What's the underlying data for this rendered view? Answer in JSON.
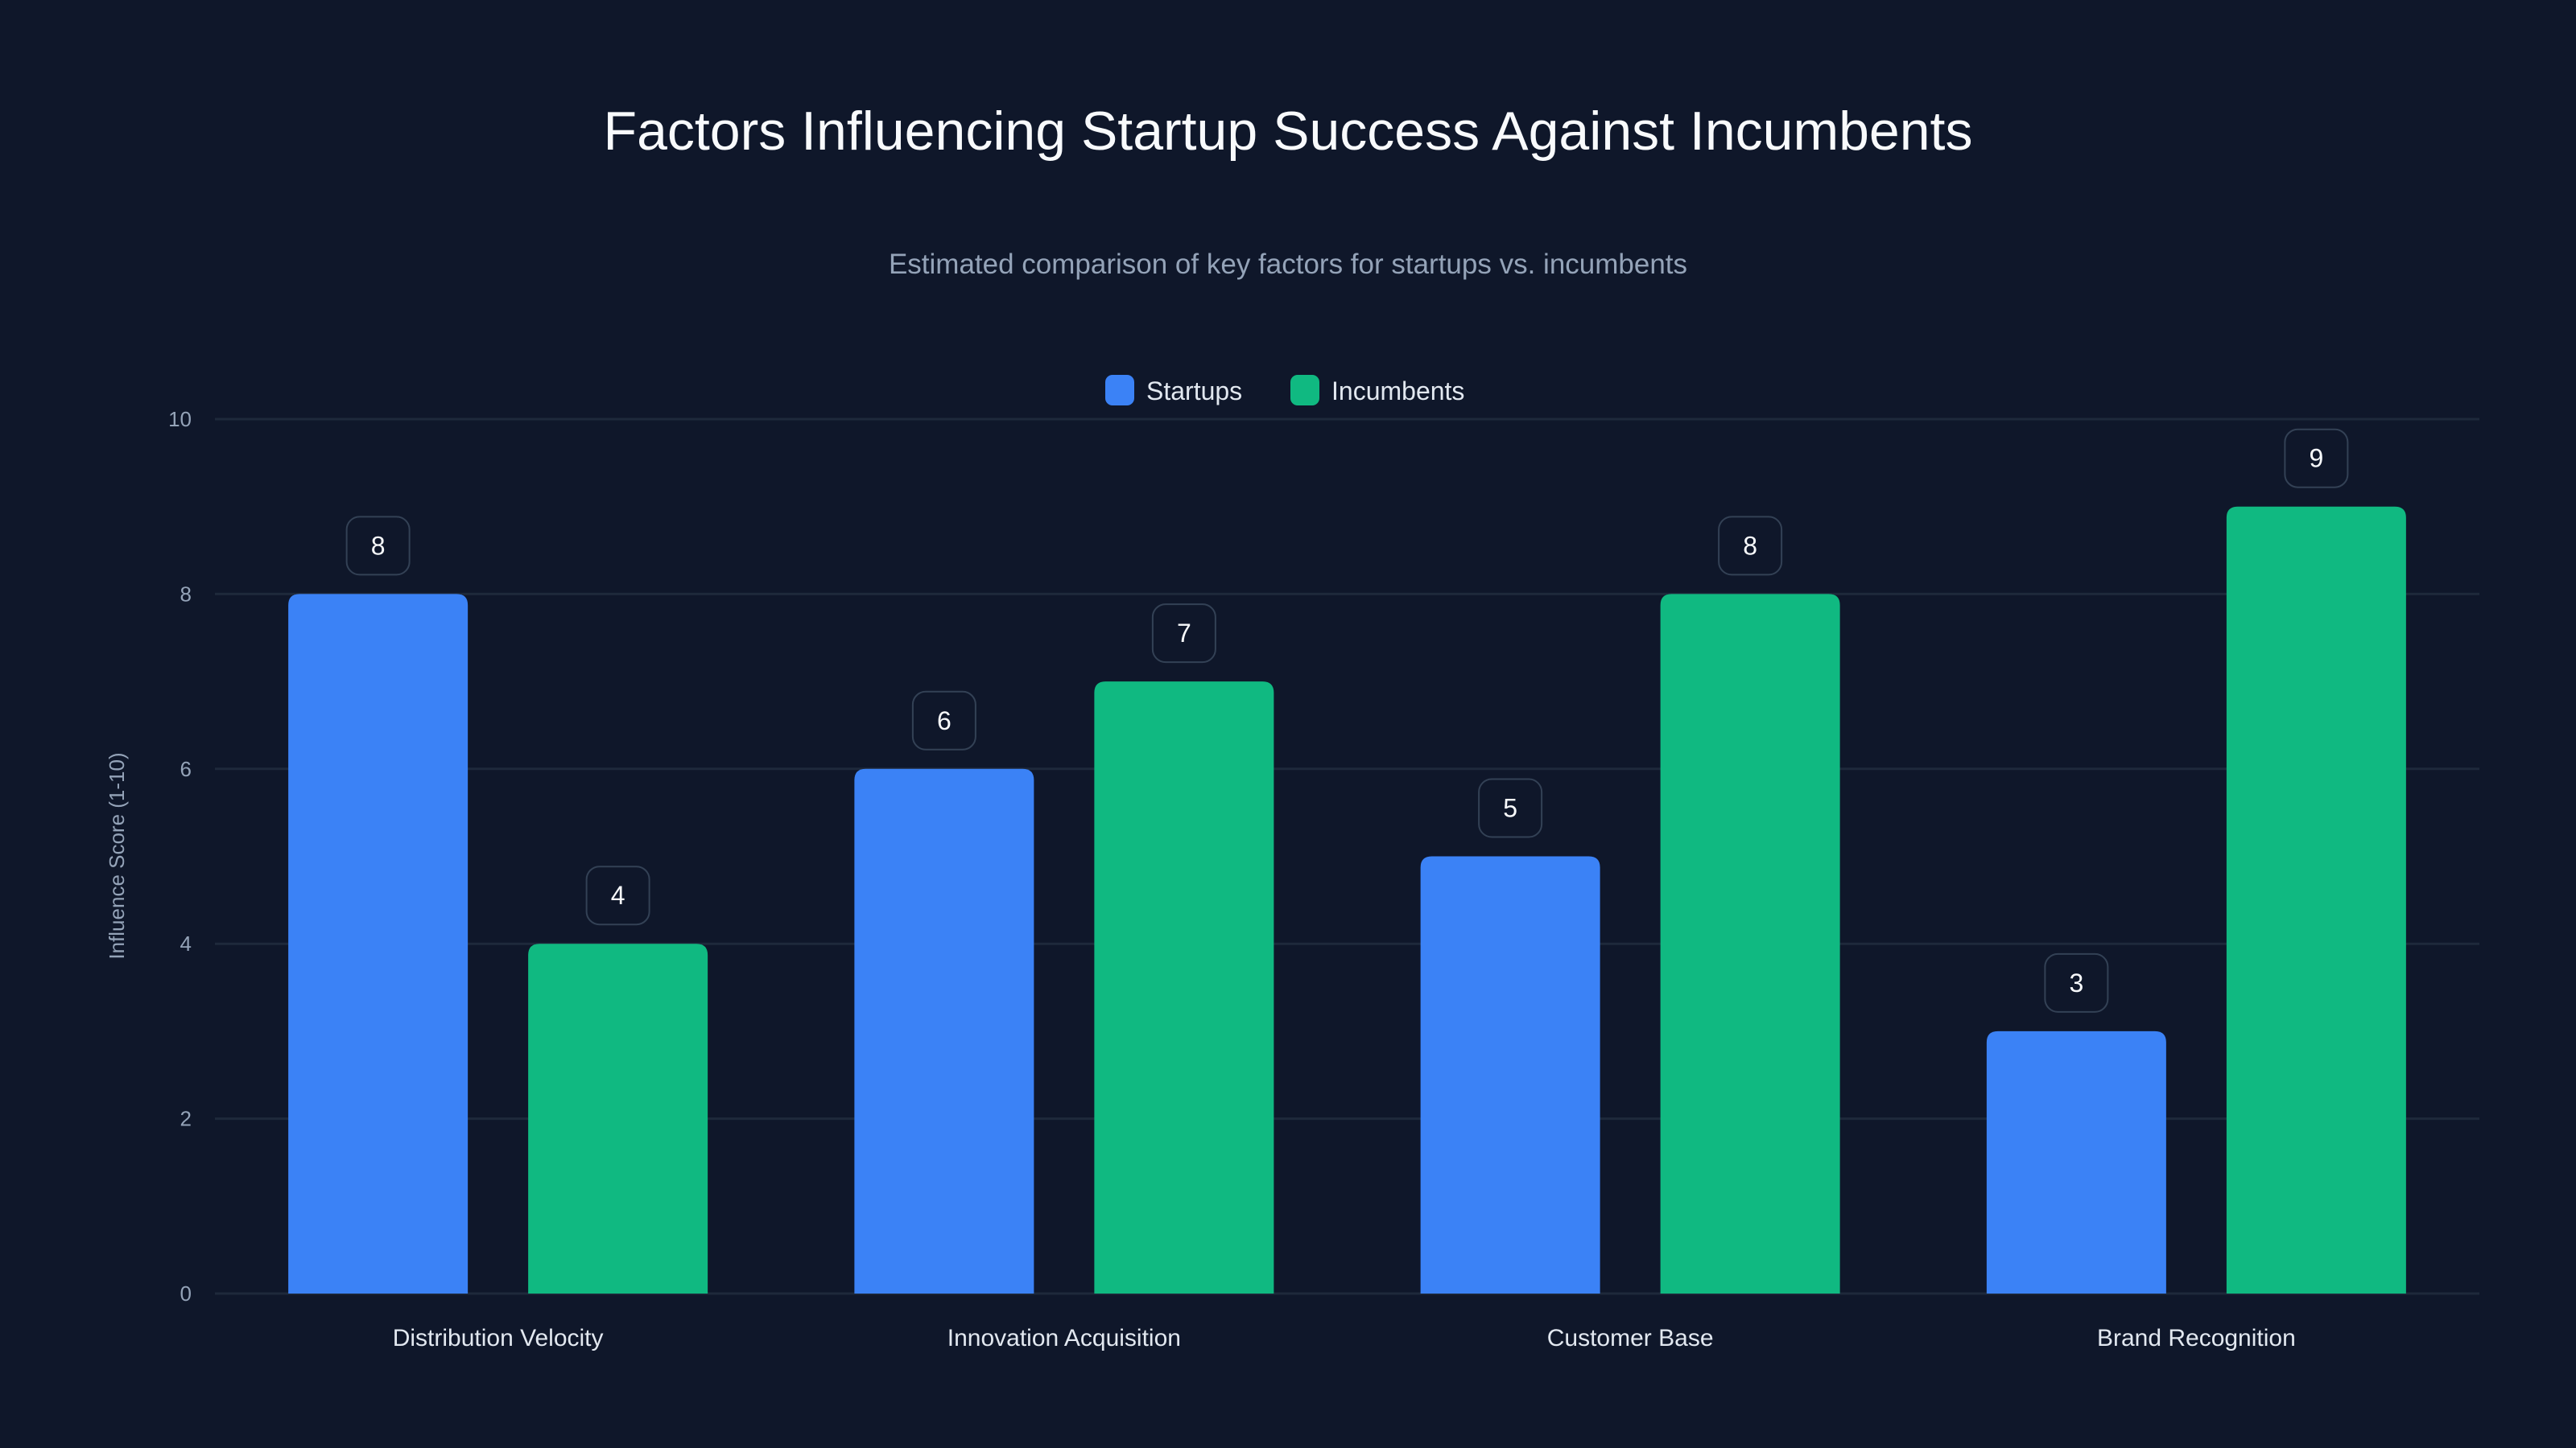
{
  "chart_data": {
    "type": "bar",
    "title": "Factors Influencing Startup Success Against Incumbents",
    "subtitle": "Estimated comparison of key factors for startups vs. incumbents",
    "xlabel": "",
    "ylabel": "Influence Score (1-10)",
    "ylim": [
      0,
      10
    ],
    "yticks": [
      0,
      2,
      4,
      6,
      8,
      10
    ],
    "grid": true,
    "legend_position": "top-center",
    "categories": [
      "Distribution Velocity",
      "Innovation Acquisition",
      "Customer Base",
      "Brand Recognition"
    ],
    "series": [
      {
        "name": "Startups",
        "color": "#3b82f6",
        "values": [
          8,
          6,
          5,
          3
        ]
      },
      {
        "name": "Incumbents",
        "color": "#10b981",
        "values": [
          4,
          7,
          8,
          9
        ]
      }
    ]
  },
  "colors": {
    "background": "#0f172a",
    "grid": "#1e293b",
    "label_border": "#334155"
  }
}
